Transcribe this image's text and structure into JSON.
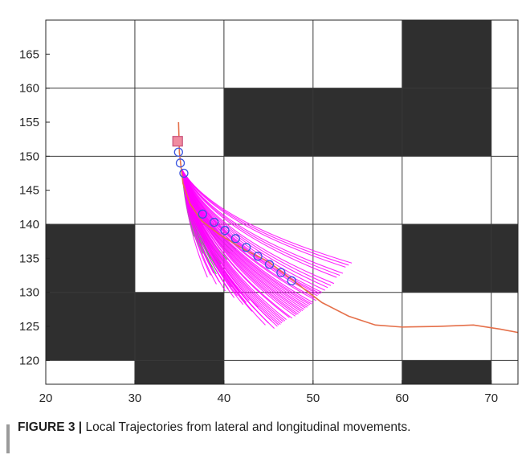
{
  "caption": {
    "label": "FIGURE 3 |",
    "text": "Local Trajectories from lateral and longitudinal movements."
  },
  "colors": {
    "obstacle": "#2f2f2f",
    "grid": "#3a3a3a",
    "reference_path": "#e5704a",
    "trajectory_valid": "#ff00ff",
    "trajectory_alt": "#22ee22",
    "waypoint": "#3a55e0",
    "start_marker_fill": "#f08ca0",
    "start_marker_edge": "#c8507a"
  },
  "chart_data": {
    "type": "line",
    "title": "",
    "xlabel": "",
    "ylabel": "",
    "xlim": [
      20,
      73
    ],
    "ylim": [
      116.5,
      170
    ],
    "x_ticks": [
      20,
      30,
      40,
      50,
      60,
      70
    ],
    "y_ticks": [
      120,
      125,
      130,
      135,
      140,
      145,
      150,
      155,
      160,
      165
    ],
    "grid": true,
    "grid_cells": {
      "x_edges": [
        20,
        30,
        40,
        50,
        60,
        70,
        73
      ],
      "y_edges": [
        116.5,
        120,
        130,
        140,
        150,
        160,
        170
      ]
    },
    "obstacles": [
      {
        "x0": 40,
        "x1": 60,
        "y0": 150,
        "y1": 160
      },
      {
        "x0": 60,
        "x1": 70,
        "y0": 150,
        "y1": 170
      },
      {
        "x0": 20,
        "x1": 30,
        "y0": 120,
        "y1": 140
      },
      {
        "x0": 30,
        "x1": 40,
        "y0": 116.5,
        "y1": 130
      },
      {
        "x0": 60,
        "x1": 73,
        "y0": 130,
        "y1": 140
      },
      {
        "x0": 60,
        "x1": 70,
        "y0": 116.5,
        "y1": 120
      }
    ],
    "reference_path": {
      "x": [
        34.9,
        35.0,
        35.4,
        36.2,
        37.5,
        39.5,
        42.0,
        45.0,
        48.0,
        51.0,
        54.0,
        57.0,
        60.0,
        64.0,
        68.0,
        71.0,
        73.0
      ],
      "y": [
        155.0,
        150.5,
        146.0,
        143.0,
        140.5,
        138.5,
        136.5,
        134.5,
        131.5,
        128.5,
        126.5,
        125.2,
        124.9,
        125.0,
        125.2,
        124.6,
        124.1
      ]
    },
    "start_marker": {
      "x": 34.8,
      "y": 152.2
    },
    "waypoints": {
      "x": [
        34.9,
        35.1,
        35.5,
        37.6,
        38.9,
        40.1,
        41.3,
        42.5,
        43.8,
        45.1,
        46.4,
        47.6
      ],
      "y": [
        150.6,
        149.0,
        147.5,
        141.5,
        140.3,
        139.1,
        137.9,
        136.6,
        135.3,
        134.1,
        132.9,
        131.7
      ]
    },
    "trajectory_origin": {
      "x": 35.3,
      "y": 148.0
    },
    "trajectory_endpoints_valid": [
      [
        53.0,
        132.5
      ],
      [
        52.0,
        131.0
      ],
      [
        51.0,
        130.0
      ],
      [
        50.5,
        129.5
      ],
      [
        50.0,
        128.5
      ],
      [
        49.5,
        128.0
      ],
      [
        49.0,
        127.5
      ],
      [
        48.5,
        127.0
      ],
      [
        48.0,
        126.5
      ],
      [
        47.0,
        126.0
      ],
      [
        46.5,
        125.5
      ],
      [
        46.0,
        125.0
      ],
      [
        45.0,
        125.5
      ],
      [
        43.5,
        127.5
      ],
      [
        42.5,
        128.5
      ],
      [
        41.5,
        129.5
      ],
      [
        40.5,
        130.5
      ],
      [
        39.5,
        131.5
      ],
      [
        38.5,
        132.5
      ],
      [
        54.0,
        134.0
      ]
    ],
    "trajectory_endpoints_alt": [
      [
        39.5,
        133.0
      ],
      [
        39.0,
        134.0
      ],
      [
        38.5,
        135.0
      ],
      [
        38.0,
        136.0
      ],
      [
        37.5,
        137.0
      ],
      [
        37.0,
        138.5
      ],
      [
        40.0,
        134.5
      ],
      [
        41.0,
        136.0
      ]
    ]
  }
}
